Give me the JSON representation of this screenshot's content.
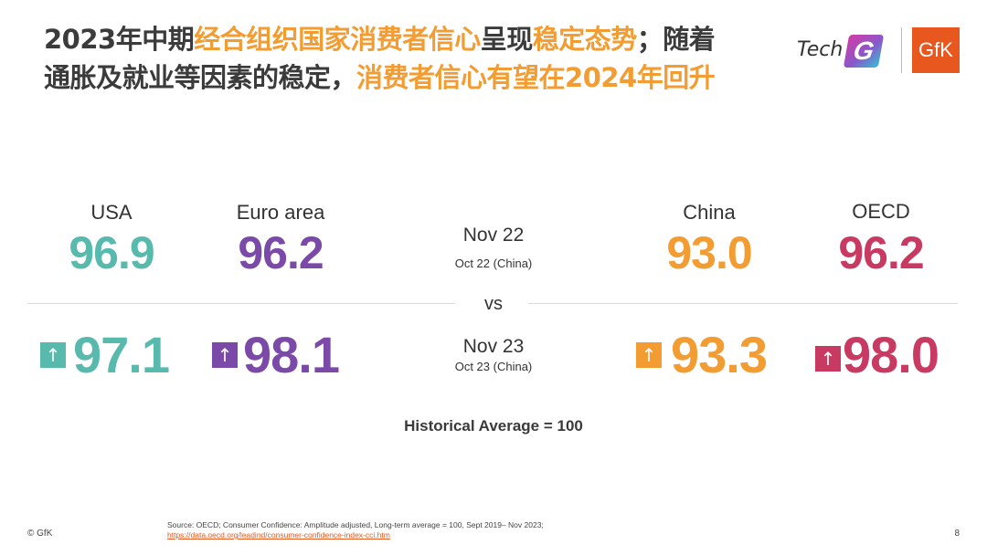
{
  "headline": {
    "line1_a": "2023年中期",
    "line1_b": "经合组织国家消费者信心",
    "line1_c": "呈现",
    "line1_d": "稳定态势",
    "line1_e": "；随着",
    "line2_a": "通胀及就业等因素的稳定，",
    "line2_b": "消费者信心有望在2024年回升"
  },
  "logos": {
    "tech_text": "Tech",
    "tech_letter": "G",
    "gfk_text": "GfK"
  },
  "regions": {
    "usa": {
      "label": "USA",
      "nov22": "96.9",
      "nov23": "97.1",
      "color": "#58b9ad"
    },
    "euro": {
      "label": "Euro area",
      "nov22": "96.2",
      "nov23": "98.1",
      "color": "#7b4aa8"
    },
    "china": {
      "label": "China",
      "nov22": "93.0",
      "nov23": "93.3",
      "color": "#f39c32"
    },
    "oecd": {
      "label": "OECD",
      "nov22": "96.2",
      "nov23": "98.0",
      "color": "#c83a62"
    }
  },
  "center": {
    "period1": "Nov 22",
    "period1_sub": "Oct 22 (China)",
    "vs": "vs",
    "period2": "Nov 23",
    "period2_sub": "Oct 23 (China)"
  },
  "arrow_icon": "↑",
  "historical": "Historical Average = 100",
  "footer": {
    "copyright": "© GfK",
    "source_text": "Source: OECD; Consumer Confidence: Amplitude adjusted, Long-term average = 100, Sept 2019– Nov 2023;",
    "source_link": "https://data.oecd.org/leadind/consumer-confidence-index-cci.htm",
    "page_number": "8"
  }
}
